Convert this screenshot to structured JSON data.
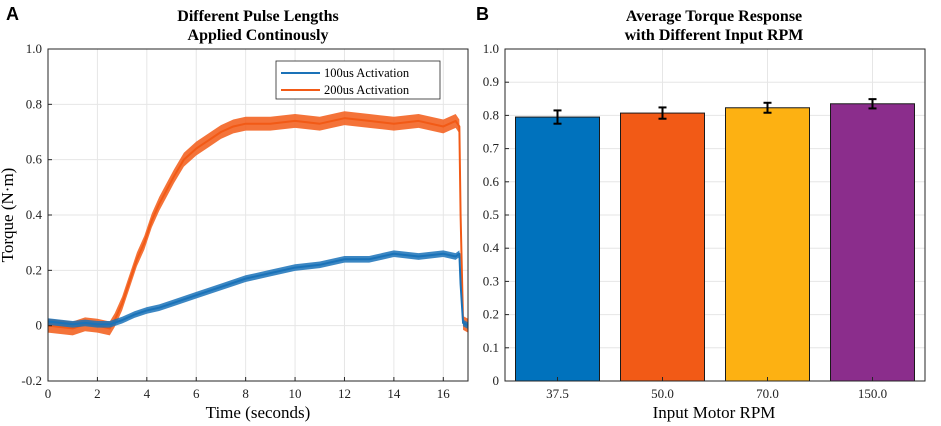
{
  "chart_data": [
    {
      "panel": "A",
      "type": "line",
      "title_lines": [
        "Different Pulse Lengths",
        "Applied Continously"
      ],
      "xlabel": "Time (seconds)",
      "ylabel": "Torque (N·m)",
      "xlim": [
        0,
        17
      ],
      "ylim": [
        -0.2,
        1.0
      ],
      "xticks": [
        0,
        2,
        4,
        6,
        8,
        10,
        12,
        14,
        16
      ],
      "yticks": [
        -0.2,
        0,
        0.2,
        0.4,
        0.6,
        0.8,
        1.0
      ],
      "ytick_labels": [
        "-0.2",
        "0",
        "0.2",
        "0.4",
        "0.6",
        "0.8",
        "1.0"
      ],
      "grid": true,
      "legend_position": "top-right",
      "series": [
        {
          "name": "200us Activation",
          "color": "#f25a16",
          "band": 0.025,
          "x": [
            0,
            0.5,
            1.0,
            1.5,
            2.0,
            2.5,
            2.7,
            3.0,
            3.3,
            3.6,
            3.9,
            4.2,
            4.5,
            4.8,
            5.1,
            5.5,
            6.0,
            6.5,
            7.0,
            7.5,
            8.0,
            9.0,
            10.0,
            11.0,
            12.0,
            13.0,
            14.0,
            15.0,
            16.0,
            16.5,
            16.65,
            16.7,
            16.8,
            17.0
          ],
          "y": [
            0.0,
            -0.005,
            -0.01,
            0.005,
            0.0,
            -0.01,
            0.02,
            0.08,
            0.16,
            0.24,
            0.3,
            0.38,
            0.44,
            0.49,
            0.54,
            0.6,
            0.64,
            0.67,
            0.7,
            0.72,
            0.73,
            0.73,
            0.74,
            0.73,
            0.75,
            0.74,
            0.73,
            0.74,
            0.72,
            0.74,
            0.72,
            0.4,
            0.01,
            0.0
          ]
        },
        {
          "name": "100us Activation",
          "color": "#1a72b8",
          "band": 0.012,
          "x": [
            0,
            0.5,
            1.0,
            1.5,
            2.0,
            2.5,
            3.0,
            3.5,
            4.0,
            4.5,
            5.0,
            6.0,
            7.0,
            8.0,
            9.0,
            10.0,
            11.0,
            12.0,
            13.0,
            14.0,
            15.0,
            16.0,
            16.5,
            16.65,
            16.7,
            16.8,
            17.0
          ],
          "y": [
            0.015,
            0.01,
            0.005,
            0.01,
            0.005,
            0.005,
            0.02,
            0.04,
            0.055,
            0.065,
            0.08,
            0.11,
            0.14,
            0.17,
            0.19,
            0.21,
            0.22,
            0.24,
            0.24,
            0.26,
            0.25,
            0.26,
            0.25,
            0.26,
            0.15,
            0.01,
            0.0
          ]
        }
      ]
    },
    {
      "panel": "B",
      "type": "bar",
      "title_lines": [
        "Average Torque Response",
        "with Different Input RPM"
      ],
      "xlabel": "Input Motor RPM",
      "ylabel": "",
      "ylim": [
        0,
        1.0
      ],
      "yticks": [
        0,
        0.1,
        0.2,
        0.3,
        0.4,
        0.5,
        0.6,
        0.7,
        0.8,
        0.9,
        1.0
      ],
      "ytick_labels": [
        "0",
        "0.1",
        "0.2",
        "0.3",
        "0.4",
        "0.5",
        "0.6",
        "0.7",
        "0.8",
        "0.9",
        "1.0"
      ],
      "grid": true,
      "categories": [
        "37.5",
        "50.0",
        "70.0",
        "150.0"
      ],
      "values": [
        0.795,
        0.807,
        0.823,
        0.835
      ],
      "errors": [
        0.02,
        0.017,
        0.015,
        0.014
      ],
      "colors": [
        "#0072bd",
        "#f25a16",
        "#fdb112",
        "#8b2d8c"
      ]
    }
  ]
}
